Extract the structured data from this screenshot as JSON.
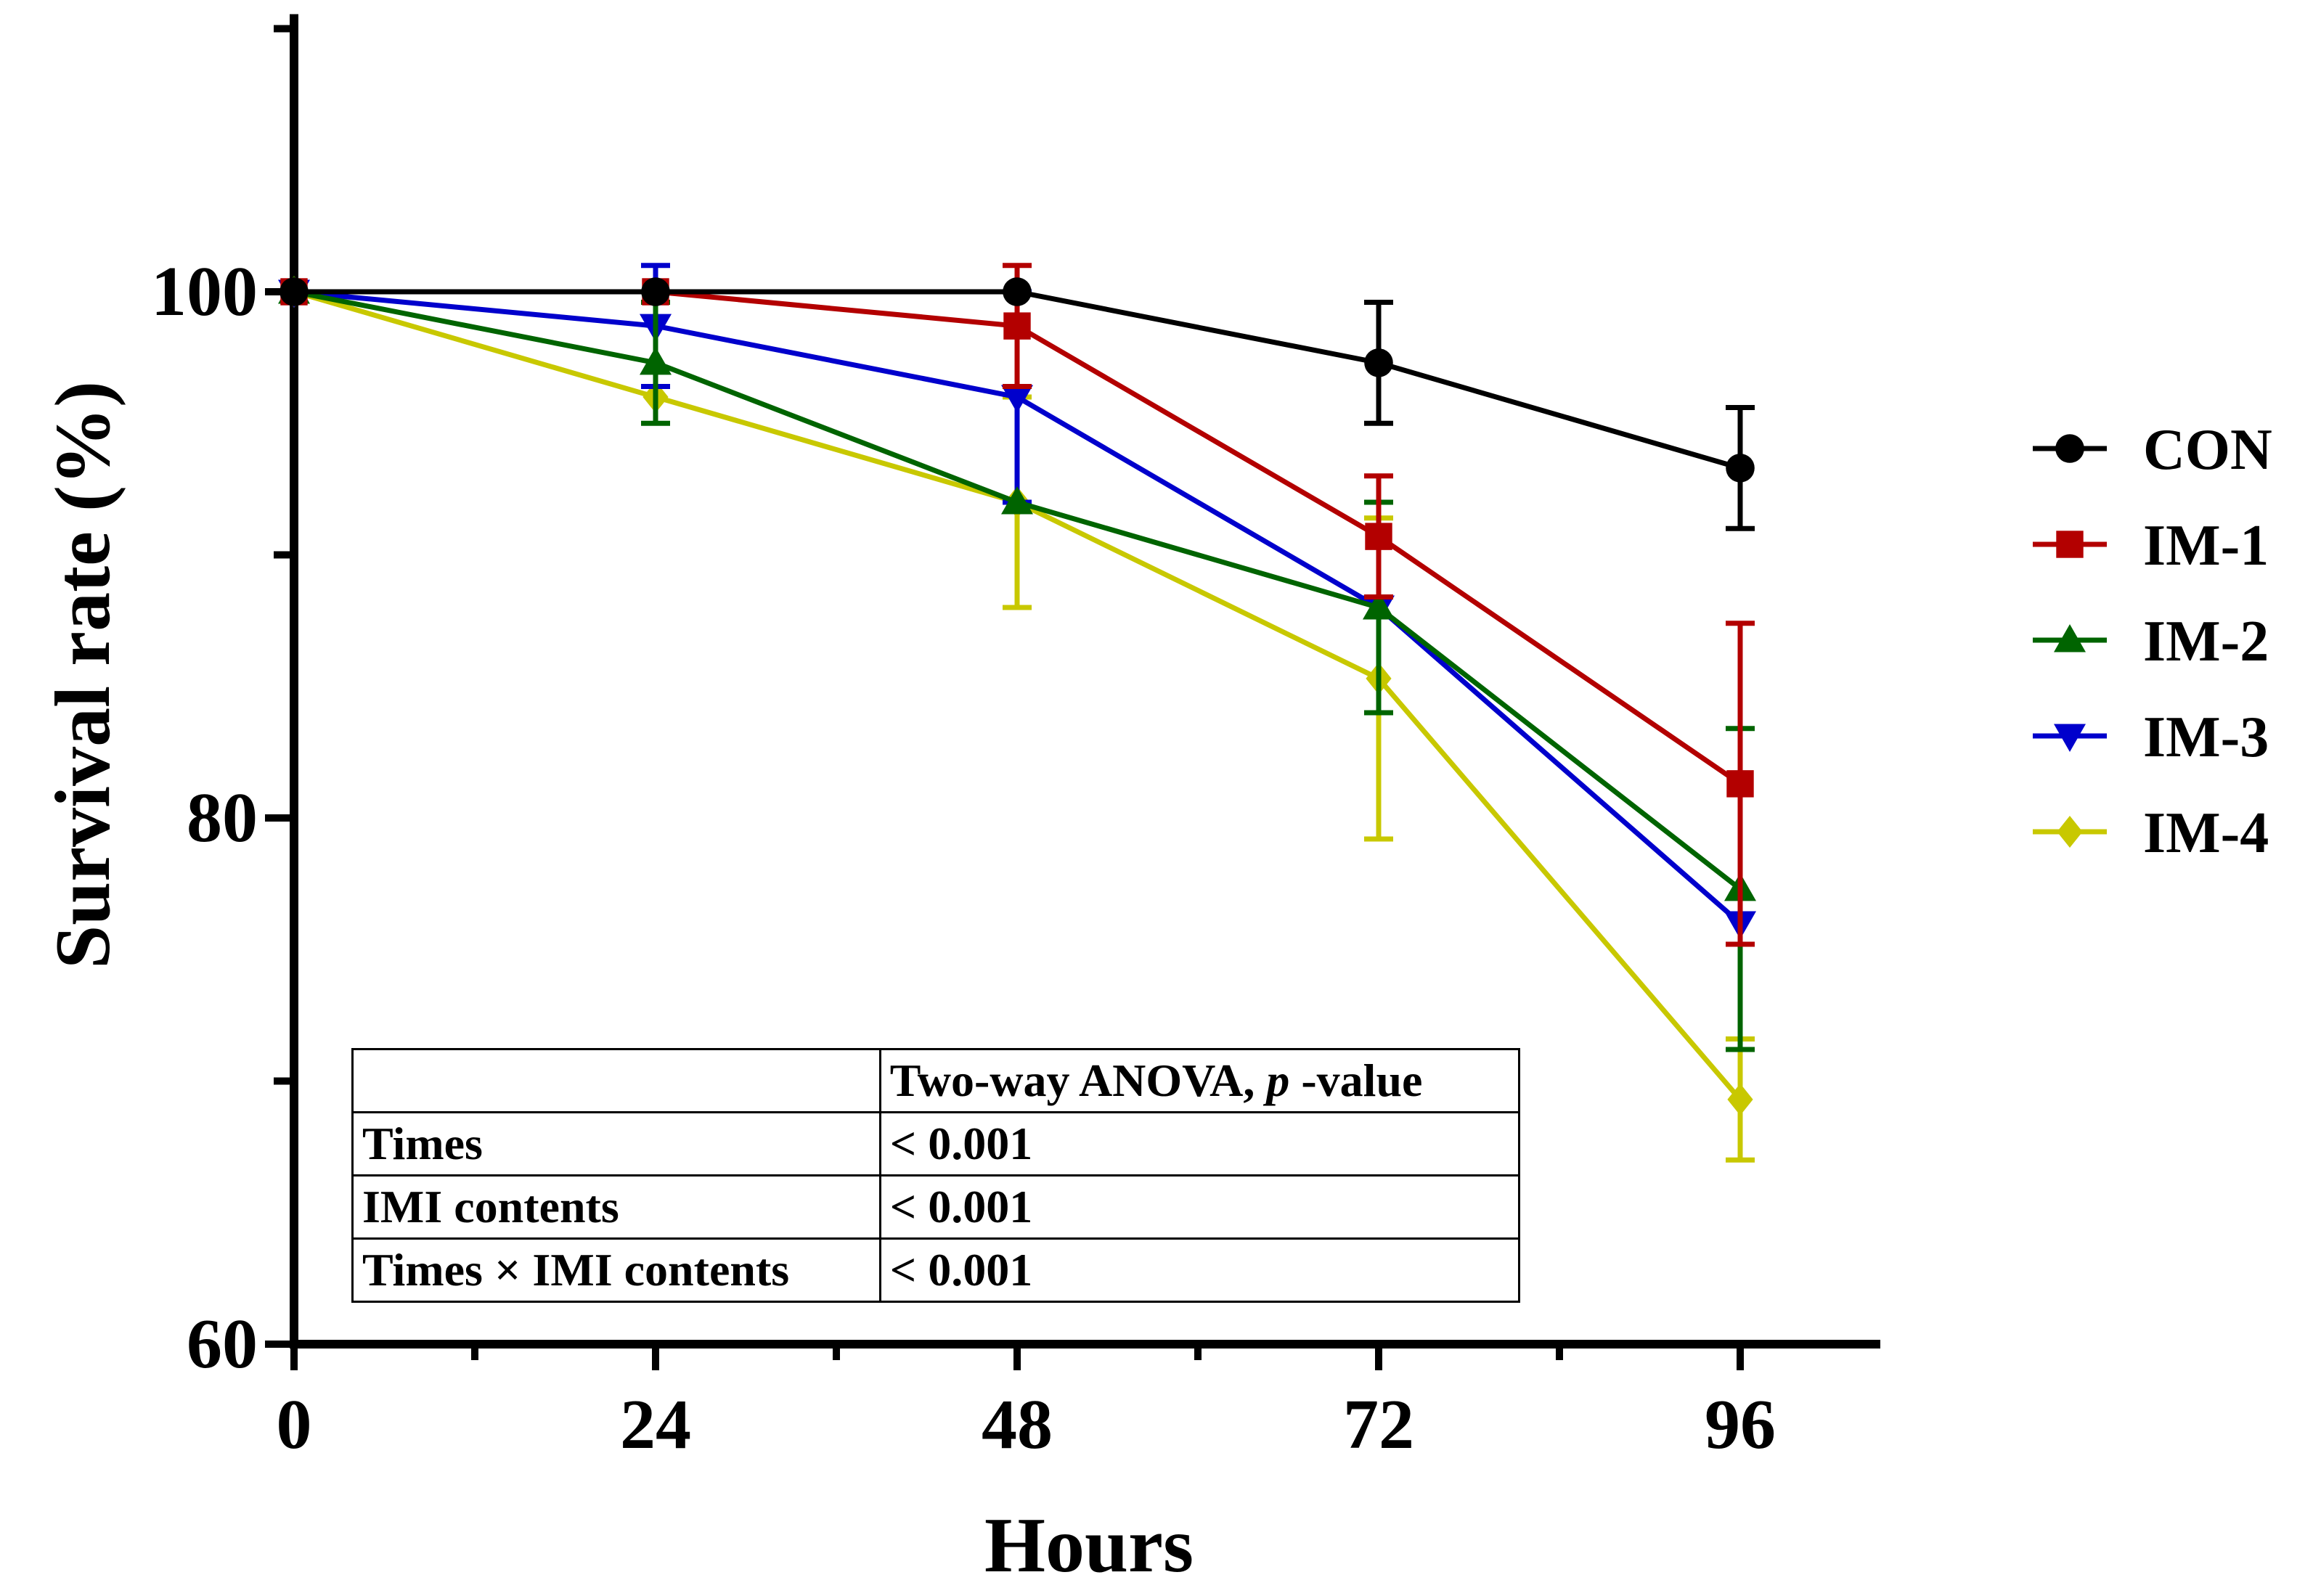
{
  "chart_data": {
    "type": "line",
    "title": "",
    "xlabel": "Hours",
    "ylabel": "Survival rate (%)",
    "x": [
      0,
      24,
      48,
      72,
      96
    ],
    "xticks": [
      "0",
      "24",
      "48",
      "72",
      "96"
    ],
    "yticks": [
      "60",
      "80",
      "100"
    ],
    "xlim": [
      0,
      105
    ],
    "ylim": [
      60,
      110
    ],
    "legend_position": "right",
    "series": [
      {
        "name": "CON",
        "color": "#000000",
        "marker": "circle",
        "values": [
          100,
          100,
          100,
          97.3,
          93.3
        ],
        "errors": [
          0,
          0,
          0,
          2.3,
          2.3
        ]
      },
      {
        "name": "IM-1",
        "color": "#b30000",
        "marker": "square",
        "values": [
          100,
          100,
          98.7,
          90.7,
          81.3
        ],
        "errors": [
          0,
          0,
          2.3,
          2.3,
          6.1
        ]
      },
      {
        "name": "IM-2",
        "color": "#006400",
        "marker": "triangle-up",
        "values": [
          100,
          97.3,
          92,
          88,
          77.3
        ],
        "errors": [
          0,
          2.3,
          0,
          4,
          6.1
        ]
      },
      {
        "name": "IM-3",
        "color": "#0000cc",
        "marker": "triangle-down",
        "values": [
          100,
          98.7,
          96,
          88,
          76
        ],
        "errors": [
          0,
          2.3,
          4,
          0,
          0
        ]
      },
      {
        "name": "IM-4",
        "color": "#c8c800",
        "marker": "diamond",
        "values": [
          100,
          96,
          92,
          85.3,
          69.3
        ],
        "errors": [
          0,
          0,
          4,
          6.1,
          2.3
        ]
      }
    ]
  },
  "table": {
    "header_label": "Two-way ANOVA, ",
    "header_p": "p",
    "header_suffix": " -value",
    "rows": [
      {
        "label": "Times",
        "value": "< 0.001"
      },
      {
        "label": "IMI contents",
        "value": "< 0.001"
      },
      {
        "label": "Times × IMI contents",
        "value": "< 0.001"
      }
    ]
  }
}
